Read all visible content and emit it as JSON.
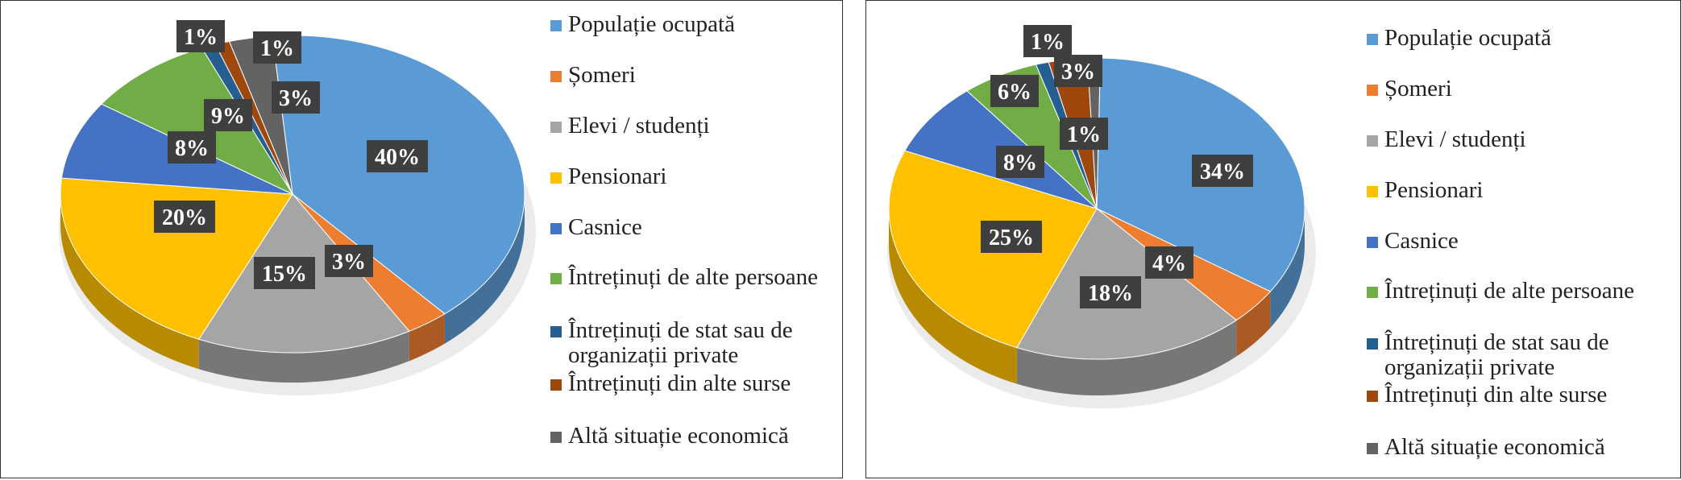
{
  "chart_data": [
    {
      "type": "pie",
      "categories": [
        "Populație ocupată",
        "Șomeri",
        "Elevi / studenți",
        "Pensionari",
        "Casnice",
        "Întreținuți de alte persoane",
        "Întreținuți de stat sau de organizații private",
        "Întreținuți din alte surse",
        "Altă situație economică"
      ],
      "values": [
        40,
        3,
        15,
        20,
        8,
        9,
        1,
        1,
        3
      ],
      "data_labels": [
        "40%",
        "3%",
        "15%",
        "20%",
        "8%",
        "9%",
        "1%",
        "1%",
        "3%"
      ],
      "colors": [
        "#5b9bd5",
        "#ed7d31",
        "#a5a5a5",
        "#ffc000",
        "#4472c4",
        "#70ad47",
        "#255e91",
        "#9e480e",
        "#636363"
      ],
      "style": "3d",
      "legend": "right"
    },
    {
      "type": "pie",
      "categories": [
        "Populație ocupată",
        "Șomeri",
        "Elevi / studenți",
        "Pensionari",
        "Casnice",
        "Întreținuți de alte persoane",
        "Întreținuți de stat sau de organizații private",
        "Întreținuți din alte surse",
        "Altă situație economică"
      ],
      "values": [
        34,
        4,
        18,
        25,
        8,
        6,
        1,
        3,
        1
      ],
      "data_labels": [
        "34%",
        "4%",
        "18%",
        "25%",
        "8%",
        "6%",
        "1%",
        "3%",
        "1%"
      ],
      "colors": [
        "#5b9bd5",
        "#ed7d31",
        "#a5a5a5",
        "#ffc000",
        "#4472c4",
        "#70ad47",
        "#255e91",
        "#9e480e",
        "#636363"
      ],
      "style": "3d",
      "legend": "right"
    }
  ]
}
